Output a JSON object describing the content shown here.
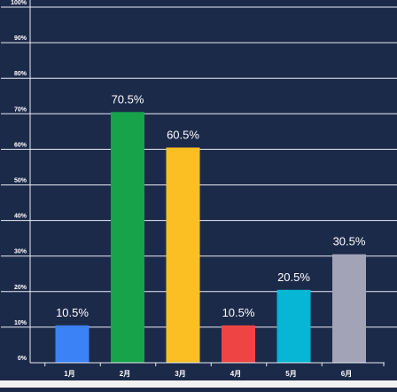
{
  "chart_data": {
    "type": "bar",
    "categories": [
      "1月",
      "2月",
      "3月",
      "4月",
      "5月",
      "6月"
    ],
    "values": [
      10.5,
      70.5,
      60.5,
      10.5,
      20.5,
      30.5
    ],
    "data_labels": [
      "10.5%",
      "70.5%",
      "60.5%",
      "10.5%",
      "20.5%",
      "30.5%"
    ],
    "colors": [
      "#3b82f6",
      "#16a34a",
      "#fbbf24",
      "#ef4444",
      "#06b6d4",
      "#a3a3b8"
    ],
    "y_ticks": [
      "0%",
      "10%",
      "20%",
      "30%",
      "40%",
      "50%",
      "60%",
      "70%",
      "80%",
      "90%",
      "100%"
    ],
    "ylim": [
      0,
      100
    ],
    "grid": true,
    "legend": "none",
    "title": "",
    "xlabel": "",
    "ylabel": ""
  },
  "colors": {
    "background": "#1c2a4a",
    "grid": "#e8ecf2",
    "axis_text": "#ffffff",
    "label_text": "#ffffff"
  }
}
